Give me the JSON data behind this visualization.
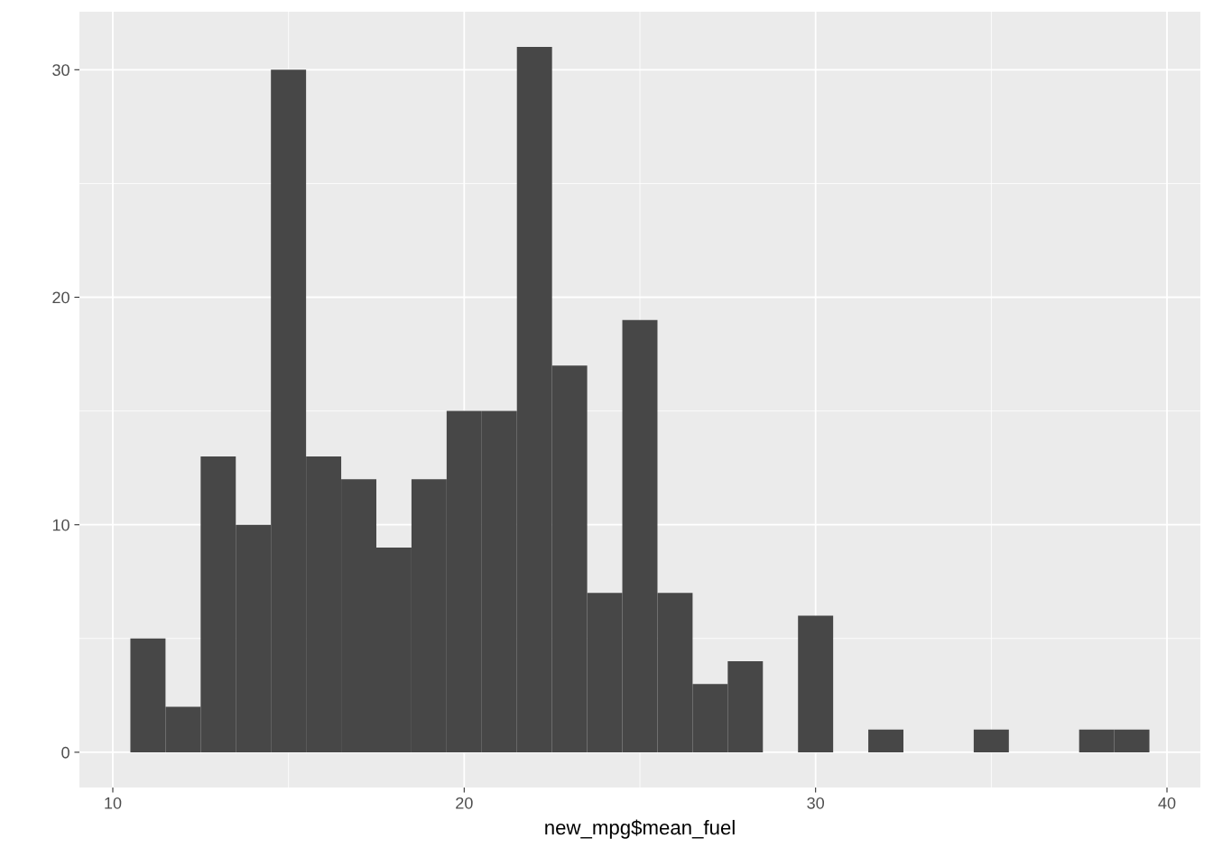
{
  "chart_data": {
    "type": "histogram",
    "xlabel": "new_mpg$mean_fuel",
    "bins": [
      10.5,
      11.5,
      12.5,
      13.5,
      14.5,
      15.5,
      16.5,
      17.5,
      18.5,
      19.5,
      20.5,
      21.5,
      22.5,
      23.5,
      24.5,
      25.5,
      26.5,
      27.5,
      28.5,
      29.5,
      30.5,
      31.5,
      32.5,
      33.5,
      34.5,
      35.5,
      36.5,
      37.5,
      38.5,
      39.5
    ],
    "values": [
      5,
      2,
      13,
      10,
      30,
      13,
      12,
      9,
      12,
      15,
      15,
      31,
      17,
      7,
      19,
      7,
      3,
      4,
      0,
      6,
      0,
      1,
      0,
      0,
      1,
      0,
      0,
      1,
      1
    ],
    "color": "#474747",
    "xlim": [
      9.05,
      40.95
    ],
    "ylim": [
      -1.55,
      32.55
    ],
    "xticks": [
      10,
      20,
      30,
      40
    ],
    "yticks": [
      0,
      10,
      20,
      30
    ],
    "grid": true
  }
}
